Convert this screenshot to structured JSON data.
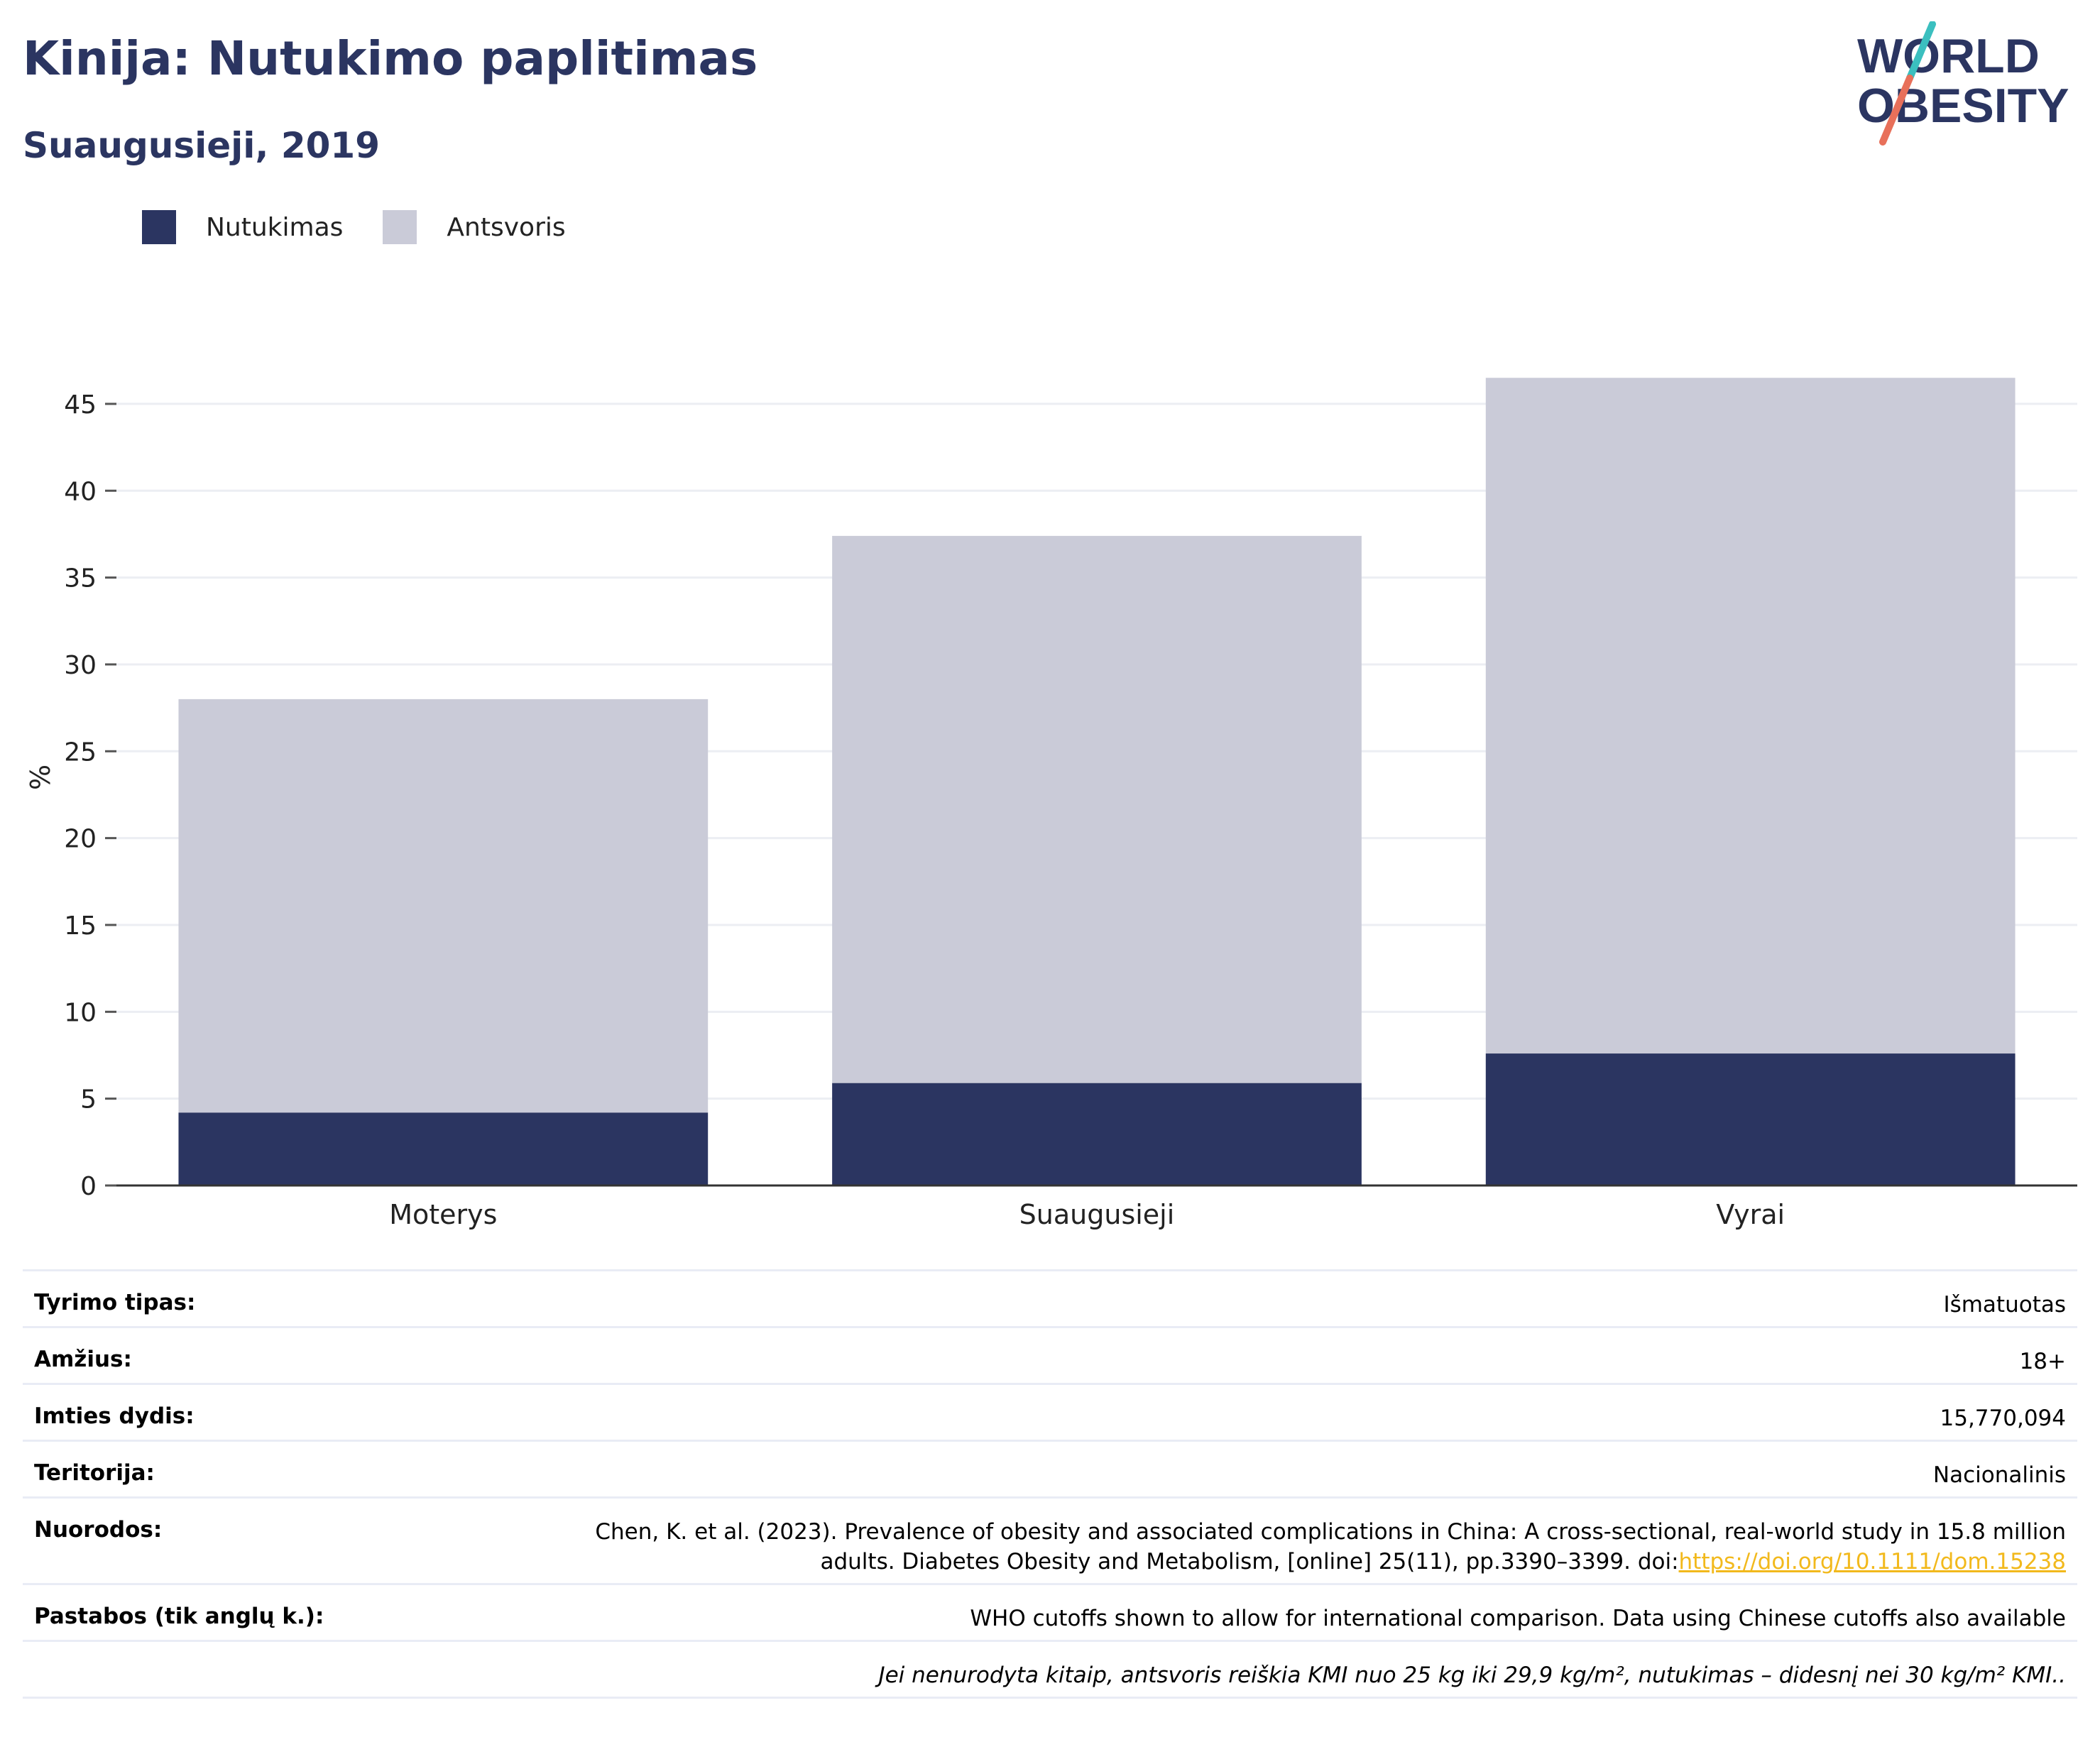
{
  "header": {
    "title": "Kinija: Nutukimo paplitimas",
    "subtitle": "Suaugusieji, 2019"
  },
  "logo": {
    "line1": "WORLD",
    "line2": "OBESITY",
    "slash_colors": [
      "#3bbfbf",
      "#e8705a"
    ],
    "text_color": "#2b3561"
  },
  "legend": {
    "items": [
      {
        "label": "Nutukimas",
        "color": "#2b3561"
      },
      {
        "label": "Antsvoris",
        "color": "#cacbd8"
      }
    ]
  },
  "chart_data": {
    "type": "bar",
    "stacked": true,
    "categories": [
      "Moterys",
      "Suaugusieji",
      "Vyrai"
    ],
    "series": [
      {
        "name": "Nutukimas",
        "values": [
          4.2,
          5.9,
          7.6
        ],
        "color": "#2b3561"
      },
      {
        "name": "Antsvoris",
        "values": [
          23.8,
          31.5,
          38.9
        ],
        "color": "#cacbd8"
      }
    ],
    "ylabel": "%",
    "ylim": [
      0,
      47
    ],
    "yticks": [
      0,
      5,
      10,
      15,
      20,
      25,
      30,
      35,
      40,
      45
    ],
    "grid": true,
    "legend_position": "top-left"
  },
  "info": {
    "survey_type": {
      "label": "Tyrimo tipas:",
      "value": "Išmatuotas"
    },
    "age": {
      "label": "Amžius:",
      "value": "18+"
    },
    "sample_size": {
      "label": "Imties dydis:",
      "value": "15,770,094"
    },
    "territory": {
      "label": "Teritorija:",
      "value": "Nacionalinis"
    },
    "references": {
      "label": "Nuorodos:",
      "line1": "Chen, K. et al. (2023). Prevalence of obesity and associated complications in China: A cross-sectional, real-world study in 15.8 million",
      "line2": "adults. Diabetes Obesity and Metabolism, [online] 25(11), pp.3390–3399. doi:",
      "doi": "https://doi.org/10.1111/dom.15238"
    },
    "notes": {
      "label": "Pastabos (tik anglų k.):",
      "value": "WHO cutoffs shown to allow for international comparison. Data using Chinese cutoffs also available"
    },
    "definition": "Jei nenurodyta kitaip, antsvoris reiškia KMI nuo 25 kg iki 29,9 kg/m², nutukimas – didesnį nei 30 kg/m² KMI.."
  }
}
